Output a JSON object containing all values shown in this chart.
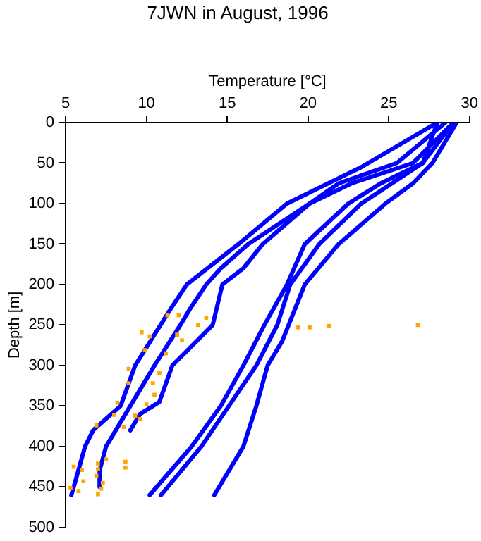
{
  "chart_data": {
    "type": "line",
    "title": "7JWN in August, 1996",
    "xlabel": "Temperature [°C]",
    "ylabel": "Depth [m]",
    "xlim": [
      5,
      30
    ],
    "xticks": [
      5,
      10,
      15,
      20,
      25,
      30
    ],
    "ylim": [
      500,
      0
    ],
    "yticks": [
      0,
      50,
      100,
      150,
      200,
      250,
      300,
      350,
      400,
      450,
      500
    ],
    "series": [
      {
        "color": "#0000ff",
        "marker": "none",
        "x": [
          28,
          23.3,
          18.7,
          15.7,
          12.5,
          11.5,
          9.3,
          8.4,
          6.7,
          6.2,
          5.5,
          5.35
        ],
        "values": [
          0,
          55,
          100,
          150,
          200,
          230,
          300,
          350,
          380,
          400,
          450,
          460
        ]
      },
      {
        "color": "#0000ff",
        "marker": "none",
        "x": [
          28.5,
          25.5,
          21.9,
          20.1,
          16.3,
          14.6,
          13.7,
          12.7,
          12.1,
          10.5,
          9,
          8.4,
          7.5,
          7.1,
          7.1
        ],
        "values": [
          0,
          50,
          75,
          100,
          150,
          180,
          200,
          230,
          250,
          300,
          350,
          370,
          400,
          430,
          450
        ]
      },
      {
        "color": "#0000ff",
        "marker": "none",
        "x": [
          29,
          26.5,
          22.7,
          20.1,
          17.2,
          16,
          14.7,
          14.1,
          11.6,
          10.8,
          9.6,
          9
        ],
        "values": [
          0,
          50,
          75,
          100,
          150,
          180,
          200,
          250,
          300,
          345,
          360,
          380
        ]
      },
      {
        "color": "#0000ff",
        "marker": "none",
        "x": [
          28,
          27.1,
          24.5,
          22.5,
          19.8,
          18.7,
          17.3,
          16,
          14.6,
          12.8,
          10.2
        ],
        "values": [
          0,
          50,
          75,
          100,
          150,
          200,
          250,
          300,
          350,
          400,
          460
        ]
      },
      {
        "color": "#0000ff",
        "marker": "none",
        "x": [
          29,
          27.1,
          23.3,
          20.7,
          18.9,
          18.1,
          16.8,
          15.1,
          13.4,
          10.9
        ],
        "values": [
          0,
          50,
          100,
          150,
          200,
          250,
          300,
          350,
          400,
          460
        ]
      },
      {
        "color": "#0000ff",
        "marker": "none",
        "x": [
          29.2,
          27.7,
          26.5,
          24.8,
          21.9,
          19.8,
          18.8,
          18.4,
          17.5,
          16.8,
          16,
          14.2
        ],
        "values": [
          0,
          50,
          75,
          100,
          150,
          200,
          250,
          270,
          300,
          350,
          400,
          460
        ]
      },
      {
        "type": "scatter",
        "color": "#ffa500",
        "marker": "square",
        "x": [
          26.8,
          21.3,
          20.1,
          19.4,
          12,
          11.3,
          13.7,
          13.2,
          11.9,
          12.2,
          9.7,
          10.2,
          9.9,
          11.2,
          8.9,
          10.8,
          8.9,
          10.4,
          10.5,
          10,
          8.2,
          8,
          9.3,
          9.6,
          6.9,
          8.6,
          5.5,
          6,
          8.7,
          8.7,
          7.5,
          7,
          6.9,
          7.3,
          5.3,
          5.8,
          7,
          7.2,
          6.1,
          7
        ],
        "values": [
          250,
          251,
          253,
          253,
          238,
          238,
          241,
          250,
          262,
          269,
          259,
          264,
          281,
          285,
          304,
          309,
          322,
          322,
          336,
          348,
          346,
          361,
          362,
          366,
          374,
          376,
          425,
          429,
          419,
          426,
          416,
          428,
          436,
          445,
          451,
          455,
          459,
          452,
          443,
          421
        ]
      }
    ]
  }
}
